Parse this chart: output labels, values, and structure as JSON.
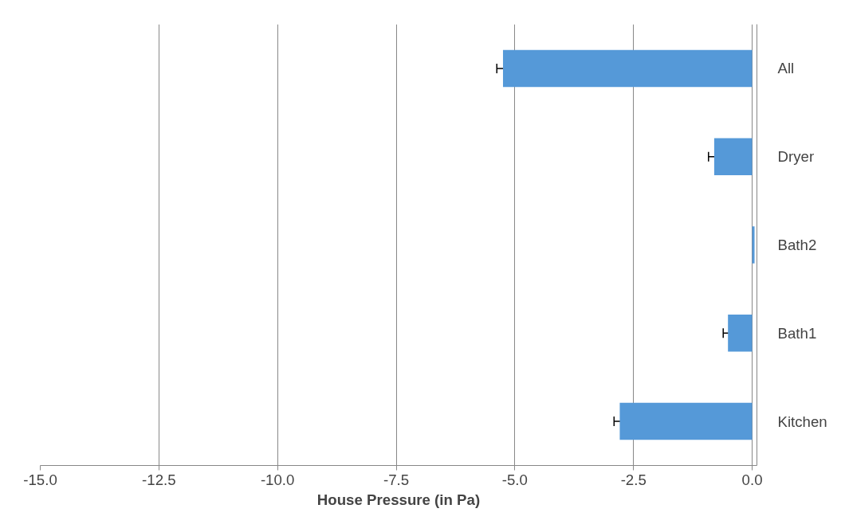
{
  "chart_data": {
    "type": "bar",
    "orientation": "horizontal",
    "categories": [
      "All",
      "Dryer",
      "Bath2",
      "Bath1",
      "Kitchen"
    ],
    "series": [
      {
        "color": "#5599d8",
        "values": [
          -5.25,
          -0.8,
          0.05,
          -0.51,
          -2.79
        ],
        "errors": [
          0.13,
          0.12,
          null,
          0.1,
          0.12
        ]
      }
    ],
    "xlabel": "House Pressure (in Pa)",
    "xlim": [
      -15,
      0.1
    ],
    "xticks": [
      {
        "value": -15,
        "label": "-15.0"
      },
      {
        "value": -12.5,
        "label": "-12.5"
      },
      {
        "value": -10,
        "label": "-10.0"
      },
      {
        "value": -7.5,
        "label": "-7.5"
      },
      {
        "value": -5,
        "label": "-5.0"
      },
      {
        "value": -2.5,
        "label": "-2.5"
      },
      {
        "value": 0,
        "label": "0.0"
      }
    ],
    "grid": "x"
  }
}
